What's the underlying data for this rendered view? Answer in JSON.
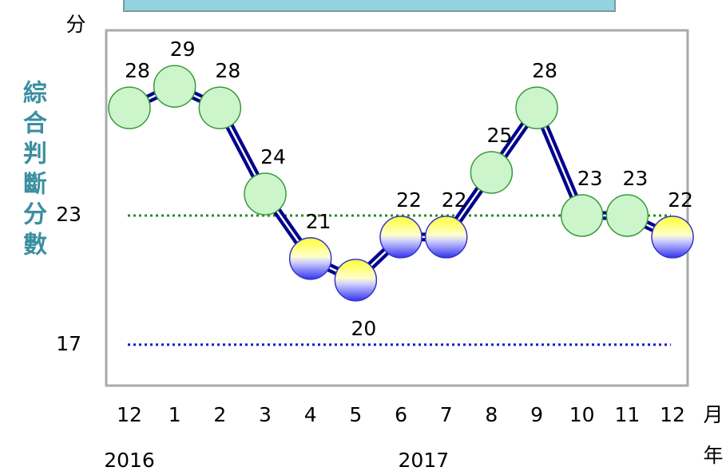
{
  "chart_data": {
    "type": "line",
    "categories": [
      "12",
      "1",
      "2",
      "3",
      "4",
      "5",
      "6",
      "7",
      "8",
      "9",
      "10",
      "11",
      "12"
    ],
    "values": [
      28,
      29,
      28,
      24,
      21,
      20,
      22,
      22,
      25,
      28,
      23,
      23,
      22
    ],
    "x_group_labels": [
      "2016",
      "2017"
    ],
    "y_axis_label": "綜合判斷分數",
    "y_unit": "分",
    "x_unit": "月",
    "x_group_unit": "年",
    "ylim": [
      15.1,
      31.6
    ],
    "yticks": [
      17,
      23
    ],
    "reference_lines": [
      {
        "value": 23,
        "color": "#2a8a2a"
      },
      {
        "value": 17,
        "color": "#1a1acc"
      }
    ],
    "color": "#00008b"
  }
}
